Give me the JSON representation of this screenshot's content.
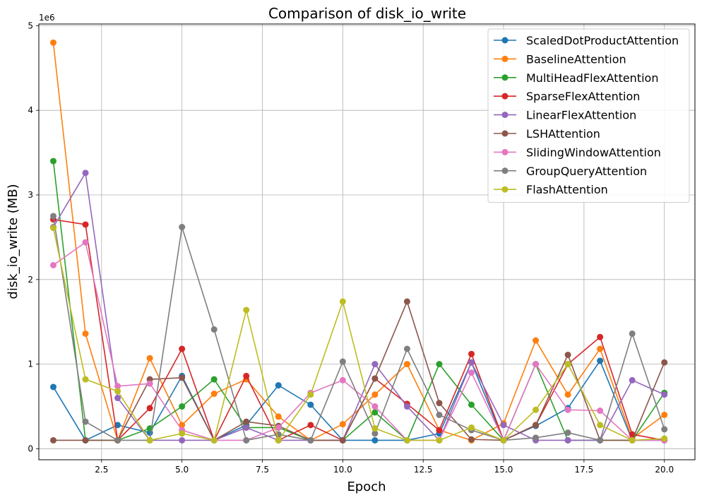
{
  "chart_data": {
    "type": "line",
    "title": "Comparison of disk_io_write",
    "xlabel": "Epoch",
    "ylabel": "disk_io_write (MB)",
    "y_multiplier_label": "1e6",
    "xlim": [
      0.55,
      20.95
    ],
    "ylim": [
      -0.13,
      5.02
    ],
    "x_ticks": [
      2.5,
      5.0,
      7.5,
      10.0,
      12.5,
      15.0,
      17.5,
      20.0
    ],
    "x_tick_labels": [
      "2.5",
      "5.0",
      "7.5",
      "10.0",
      "12.5",
      "15.0",
      "17.5",
      "20.0"
    ],
    "y_ticks": [
      0,
      1,
      2,
      3,
      4,
      5
    ],
    "y_tick_labels": [
      "0",
      "1",
      "2",
      "3",
      "4",
      "5"
    ],
    "grid": true,
    "legend_position": "top-right",
    "x": [
      1,
      2,
      3,
      4,
      5,
      6,
      7,
      8,
      9,
      10,
      11,
      12,
      13,
      14,
      15,
      16,
      17,
      18,
      19,
      20
    ],
    "series": [
      {
        "name": "ScaledDotProductAttention",
        "color": "#1f77b4",
        "values": [
          0.73,
          0.1,
          0.28,
          0.19,
          0.86,
          0.1,
          0.28,
          0.75,
          0.52,
          0.1,
          0.1,
          0.1,
          0.18,
          1.02,
          0.1,
          0.27,
          0.48,
          1.04,
          0.1,
          0.1
        ]
      },
      {
        "name": "BaselineAttention",
        "color": "#ff7f0e",
        "values": [
          4.8,
          1.36,
          0.1,
          1.07,
          0.28,
          0.65,
          0.82,
          0.38,
          0.1,
          0.29,
          0.64,
          1.0,
          0.22,
          0.1,
          0.3,
          1.28,
          0.64,
          1.18,
          0.12,
          0.4
        ]
      },
      {
        "name": "MultiHeadFlexAttention",
        "color": "#2ca02c",
        "values": [
          3.4,
          0.1,
          0.1,
          0.24,
          0.5,
          0.82,
          0.25,
          0.25,
          0.1,
          0.1,
          0.43,
          0.1,
          1.0,
          0.52,
          0.1,
          1.0,
          0.1,
          0.1,
          0.1,
          0.66
        ]
      },
      {
        "name": "SparseFlexAttention",
        "color": "#d62728",
        "values": [
          2.71,
          2.65,
          0.1,
          0.48,
          1.18,
          0.1,
          0.86,
          0.1,
          0.28,
          0.1,
          0.83,
          0.53,
          0.22,
          1.12,
          0.1,
          0.28,
          1.0,
          1.32,
          0.17,
          0.1
        ]
      },
      {
        "name": "LinearFlexAttention",
        "color": "#9467bd",
        "values": [
          2.62,
          3.26,
          0.6,
          0.1,
          0.1,
          0.1,
          0.25,
          0.1,
          0.1,
          0.1,
          1.0,
          0.5,
          0.1,
          1.02,
          0.28,
          0.1,
          0.1,
          0.1,
          0.81,
          0.64
        ]
      },
      {
        "name": "LSHAttention",
        "color": "#8c564b",
        "values": [
          0.1,
          0.1,
          0.1,
          0.82,
          0.84,
          0.1,
          0.32,
          0.27,
          0.1,
          0.1,
          0.83,
          1.74,
          0.54,
          0.11,
          0.1,
          0.28,
          1.11,
          0.1,
          0.1,
          1.02
        ]
      },
      {
        "name": "SlidingWindowAttention",
        "color": "#e377c2",
        "values": [
          2.17,
          2.44,
          0.74,
          0.77,
          0.22,
          0.1,
          0.1,
          0.25,
          0.66,
          0.81,
          0.5,
          0.1,
          0.1,
          0.9,
          0.1,
          1.0,
          0.46,
          0.45,
          0.1,
          0.1
        ]
      },
      {
        "name": "GroupQueryAttention",
        "color": "#7f7f7f",
        "values": [
          2.75,
          0.32,
          0.1,
          0.1,
          2.62,
          1.41,
          0.1,
          0.17,
          0.1,
          1.03,
          0.18,
          1.18,
          0.4,
          0.22,
          0.1,
          0.13,
          0.19,
          0.1,
          1.36,
          0.23
        ]
      },
      {
        "name": "FlashAttention",
        "color": "#bcbd22",
        "values": [
          2.61,
          0.82,
          0.68,
          0.1,
          0.18,
          0.1,
          1.64,
          0.1,
          0.64,
          1.74,
          0.24,
          0.1,
          0.1,
          0.25,
          0.1,
          0.46,
          1.0,
          0.28,
          0.1,
          0.12
        ]
      }
    ]
  }
}
